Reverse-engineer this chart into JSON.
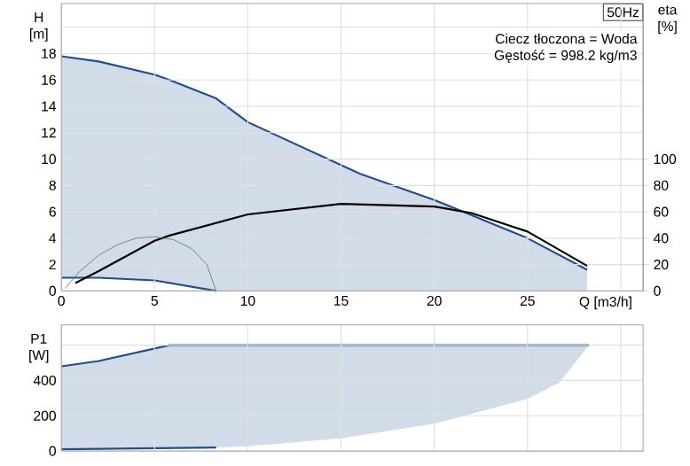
{
  "chart_data": [
    {
      "type": "line",
      "title": "50Hz",
      "ylabel": "H [m]",
      "y2label": "eta [%]",
      "xlabel": "Q [m3/h]",
      "annotations": [
        "Ciecz tłoczona = Woda",
        "Gęstość = 998.2 kg/m3"
      ],
      "xlim": [
        0,
        31.2
      ],
      "xticks": [
        0,
        5,
        10,
        15,
        20,
        25,
        {
          "value": 30,
          "label": null
        }
      ],
      "ylim": [
        0,
        21.8
      ],
      "yticks": [
        0,
        2,
        4,
        6,
        8,
        10,
        12,
        14,
        16,
        18,
        {
          "value": 20,
          "label": null
        }
      ],
      "y2lim": [
        0,
        218
      ],
      "y2ticks": [
        0,
        20,
        40,
        60,
        80,
        100
      ],
      "grid": true,
      "series": [
        {
          "color": "#1f4e8c",
          "x": [
            0,
            2,
            5,
            5.8,
            8.3,
            10,
            16,
            20,
            25,
            28.2
          ],
          "values": [
            17.8,
            17.4,
            16.4,
            16,
            14.6,
            12.8,
            8.9,
            6.9,
            4,
            1.6
          ],
          "upper": [
            17.8,
            17.4,
            16.4,
            16,
            14.6,
            12.8,
            8.9,
            6.9,
            4,
            1.6
          ],
          "lower": [
            1,
            1,
            0.8,
            0.6,
            0,
            0,
            0,
            0,
            0,
            0
          ]
        },
        {
          "color": "#1f4e8c",
          "x": [
            0,
            2,
            5,
            8.3
          ],
          "values": [
            1,
            1,
            0.8,
            0
          ]
        },
        {
          "color": "#000000",
          "axis": "y2",
          "x": [
            0.75,
            2,
            5,
            5.8,
            10,
            15,
            20,
            22,
            25,
            28.2
          ],
          "values": [
            6,
            15,
            38,
            42,
            58,
            66,
            64,
            59,
            45,
            19
          ]
        },
        {
          "color": "#666666",
          "axis": "y2",
          "x": [
            0.2,
            1,
            2,
            3,
            4,
            5,
            6,
            7,
            7.8,
            8.3
          ],
          "values": [
            2,
            15,
            27,
            35,
            40,
            41,
            39,
            32,
            20,
            0
          ]
        }
      ]
    },
    {
      "type": "line",
      "ylabel": "P1 [W]",
      "tick_labels": "y",
      "xlim": [
        0,
        31.2
      ],
      "xticks": [
        0,
        5,
        10,
        15,
        20,
        25,
        30
      ],
      "ylim": [
        0,
        715
      ],
      "yticks": [
        0,
        200,
        400,
        {
          "value": 600,
          "label": null
        }
      ],
      "grid": true,
      "series": [
        {
          "color": "#1f4e8c",
          "x": [
            0,
            2,
            5.8,
            8.3,
            10,
            15,
            20,
            25,
            26.7,
            28.3
          ],
          "values": [
            480,
            510,
            600,
            600,
            600,
            600,
            600,
            600,
            600,
            600
          ],
          "upper": [
            480,
            510,
            600,
            600,
            600,
            600,
            600,
            600,
            600,
            600
          ],
          "lower": [
            10,
            12,
            17,
            20,
            27,
            72,
            155,
            295,
            387,
            600
          ]
        },
        {
          "color": "#1f4e8c",
          "x": [
            0,
            8.3
          ],
          "values": [
            10,
            20
          ]
        }
      ]
    }
  ]
}
